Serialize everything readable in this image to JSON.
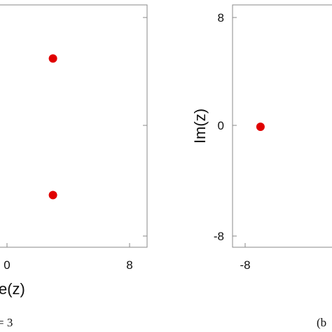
{
  "chart_data": [
    {
      "type": "scatter",
      "title": "",
      "xlabel": "Re(z)",
      "xlabel_visible": "e(z)",
      "ylabel": "",
      "xlim": [
        -8,
        8
      ],
      "ylim": [
        -8,
        8
      ],
      "x_ticks": [
        "0",
        "8"
      ],
      "y_ticks": [],
      "marker_color": "#e00000",
      "points": [
        {
          "x": 3,
          "y": 5
        },
        {
          "x": 3,
          "y": -5
        }
      ],
      "caption": "= 3"
    },
    {
      "type": "scatter",
      "title": "",
      "xlabel": "",
      "ylabel": "Im(z)",
      "xlim": [
        -8,
        8
      ],
      "ylim": [
        -8,
        8
      ],
      "x_ticks": [
        "-8"
      ],
      "y_ticks": [
        "8",
        "0",
        "-8"
      ],
      "marker_color": "#e00000",
      "points": [
        {
          "x": -7,
          "y": 0
        }
      ],
      "caption": "(b"
    }
  ]
}
